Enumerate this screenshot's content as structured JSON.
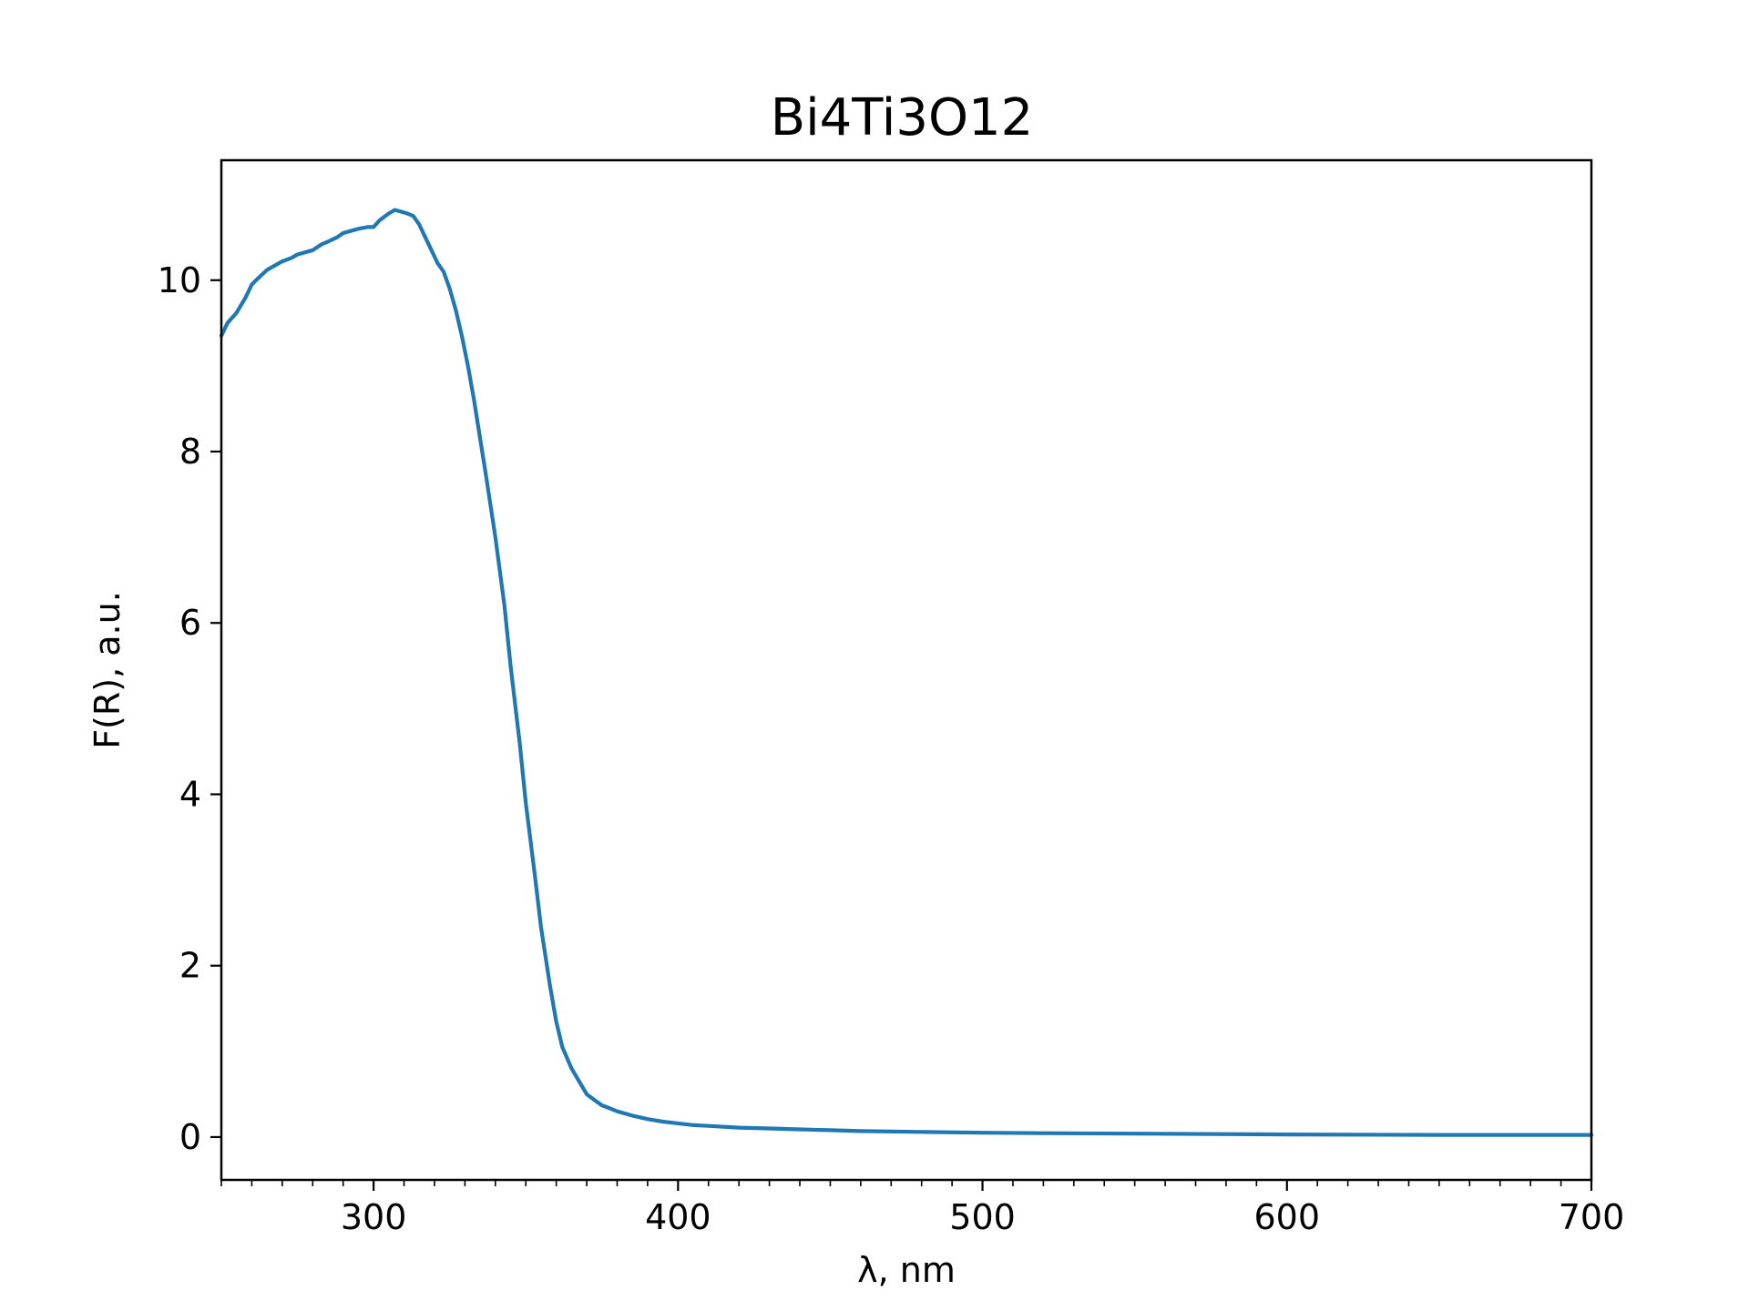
{
  "chart_data": {
    "type": "line",
    "title": "Bi4Ti3O12",
    "xlabel": "λ, nm",
    "ylabel": "F(R), a.u.",
    "xlim": [
      250,
      700
    ],
    "ylim": [
      -0.5,
      11.4
    ],
    "x_ticks": [
      300,
      400,
      500,
      600,
      700
    ],
    "x_tick_labels": [
      "300",
      "400",
      "500",
      "600",
      "700"
    ],
    "x_minor_step": 10,
    "y_ticks": [
      0,
      2,
      4,
      6,
      8,
      10
    ],
    "y_tick_labels": [
      "0",
      "2",
      "4",
      "6",
      "8",
      "10"
    ],
    "grid": false,
    "legend": "none",
    "line_color": "#1f77b4",
    "series": [
      {
        "x": [
          250,
          252,
          255,
          258,
          260,
          262,
          265,
          268,
          270,
          273,
          275,
          278,
          280,
          283,
          285,
          288,
          290,
          293,
          295,
          298,
          300,
          302,
          305,
          307,
          309,
          311,
          313,
          315,
          317,
          319,
          321,
          323,
          325,
          327,
          329,
          331,
          333,
          335,
          337,
          340,
          343,
          345,
          348,
          350,
          353,
          355,
          358,
          360,
          362,
          365,
          368,
          370,
          373,
          375,
          378,
          380,
          383,
          385,
          390,
          395,
          400,
          405,
          410,
          420,
          430,
          440,
          450,
          460,
          480,
          500,
          520,
          550,
          600,
          650,
          700
        ],
        "y": [
          9.35,
          9.5,
          9.62,
          9.8,
          9.95,
          10.02,
          10.12,
          10.18,
          10.22,
          10.26,
          10.3,
          10.33,
          10.35,
          10.42,
          10.45,
          10.5,
          10.55,
          10.58,
          10.6,
          10.62,
          10.62,
          10.7,
          10.78,
          10.82,
          10.8,
          10.78,
          10.75,
          10.65,
          10.5,
          10.35,
          10.2,
          10.1,
          9.9,
          9.65,
          9.35,
          9.0,
          8.6,
          8.15,
          7.7,
          7.0,
          6.2,
          5.5,
          4.6,
          3.9,
          3.05,
          2.45,
          1.75,
          1.35,
          1.05,
          0.8,
          0.62,
          0.5,
          0.42,
          0.37,
          0.33,
          0.3,
          0.27,
          0.25,
          0.21,
          0.18,
          0.16,
          0.14,
          0.13,
          0.11,
          0.1,
          0.09,
          0.08,
          0.07,
          0.06,
          0.05,
          0.045,
          0.04,
          0.03,
          0.025,
          0.025
        ]
      }
    ]
  }
}
